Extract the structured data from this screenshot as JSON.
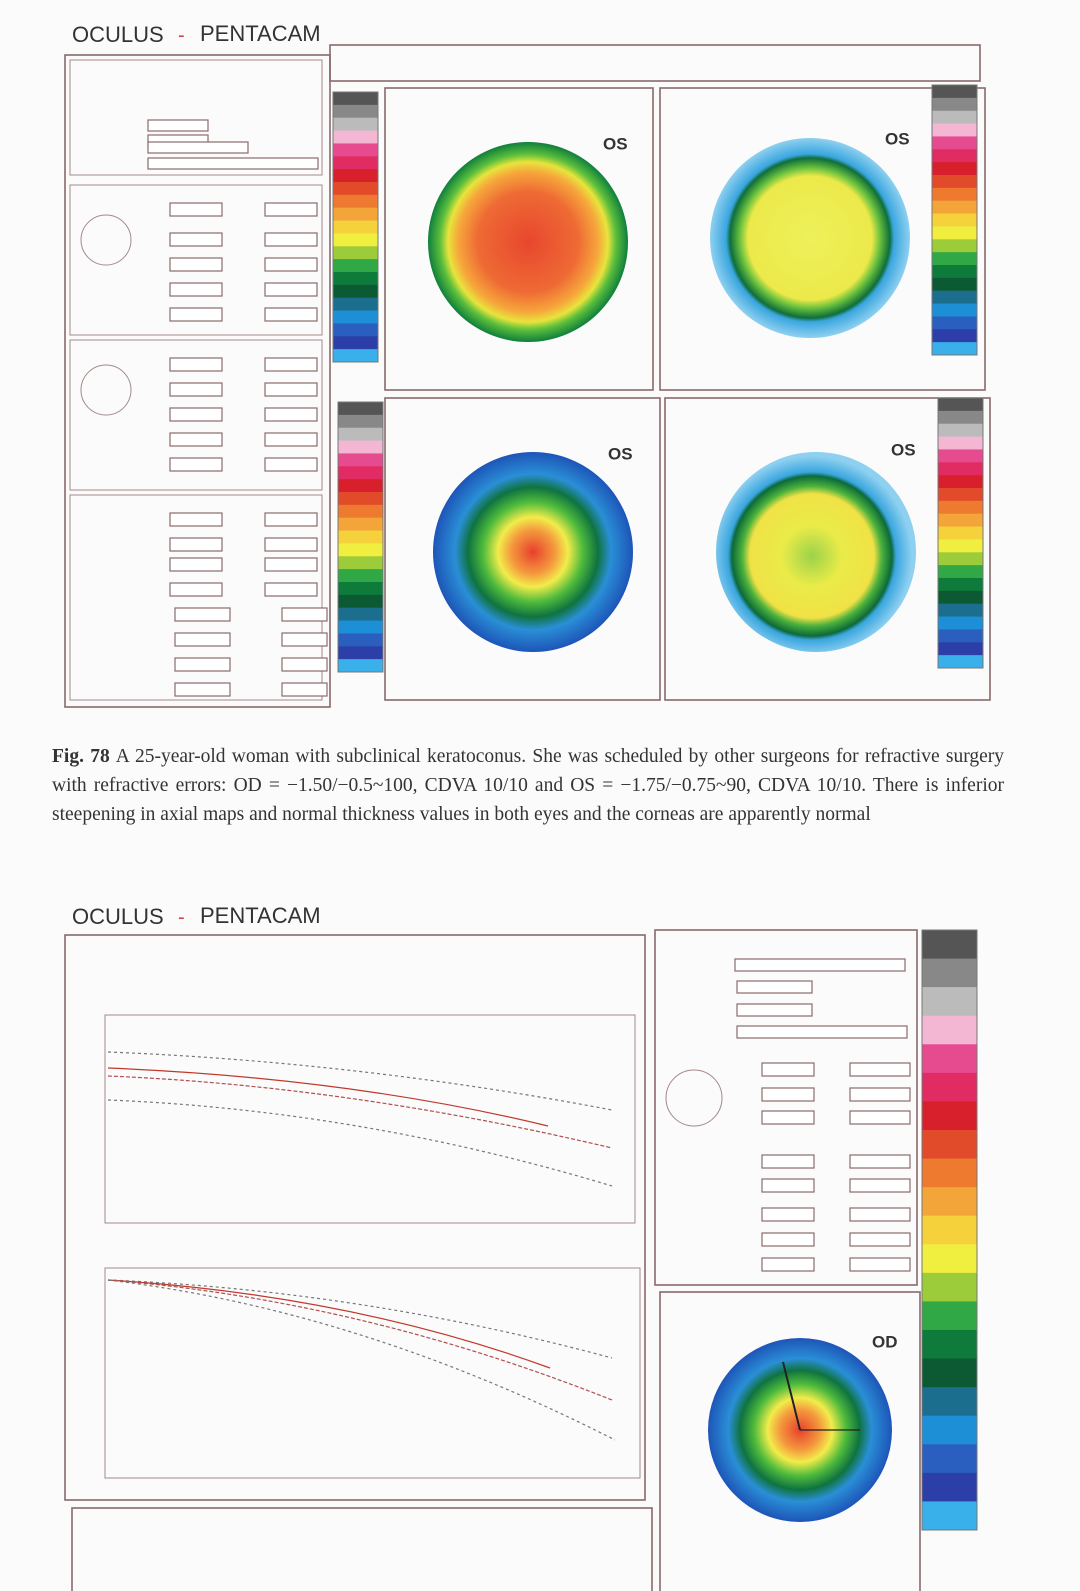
{
  "figure_top": {
    "brand": "OCULUS",
    "separator": "-",
    "product": "PENTACAM",
    "map_eyes": [
      "OS",
      "OS",
      "OS",
      "OS"
    ]
  },
  "caption": {
    "label": "Fig. 78",
    "text": "A 25-year-old woman with subclinical keratoconus. She was scheduled by other surgeons for refractive surgery with refractive errors: OD = −1.50/−0.5~100, CDVA 10/10 and OS = −1.75/−0.75~90, CDVA 10/10. There is inferior steepening in axial maps and normal thickness values in both eyes and the corneas are apparently normal"
  },
  "figure_bottom": {
    "brand": "OCULUS",
    "separator": "-",
    "product": "PENTACAM",
    "map_eye": "OD"
  }
}
